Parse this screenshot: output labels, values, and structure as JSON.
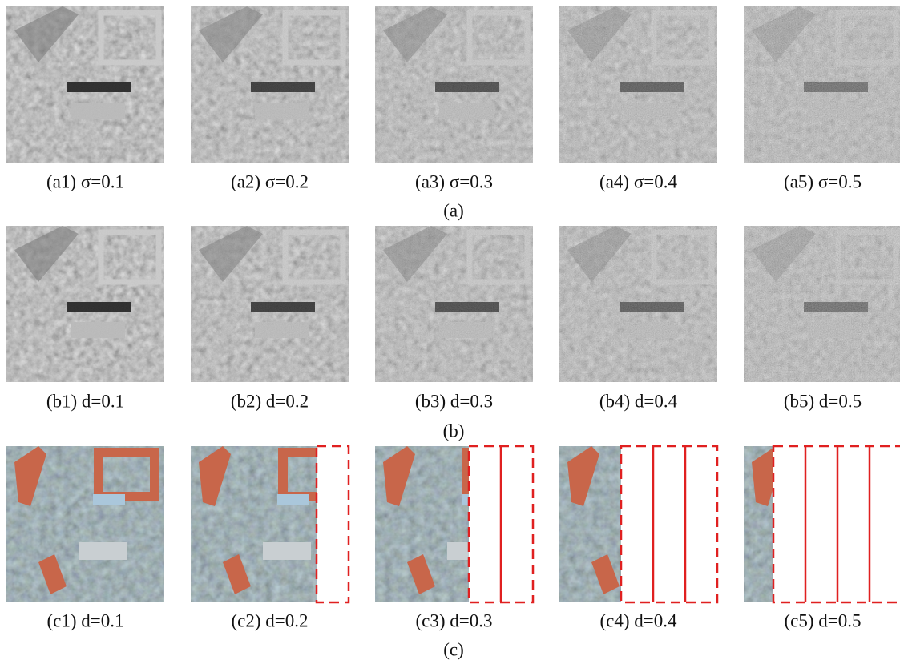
{
  "rows": [
    {
      "label": "(a)",
      "panels": [
        "(a1) σ=0.1",
        "(a2) σ=0.2",
        "(a3) σ=0.3",
        "(a4) σ=0.4",
        "(a5) σ=0.5"
      ]
    },
    {
      "label": "(b)",
      "panels": [
        "(b1) d=0.1",
        "(b2) d=0.2",
        "(b3) d=0.3",
        "(b4) d=0.4",
        "(b5) d=0.5"
      ]
    },
    {
      "label": "(c)",
      "panels": [
        "(c1) d=0.1",
        "(c2) d=0.2",
        "(c3) d=0.3",
        "(c4) d=0.4",
        "(c5) d=0.5"
      ]
    }
  ]
}
